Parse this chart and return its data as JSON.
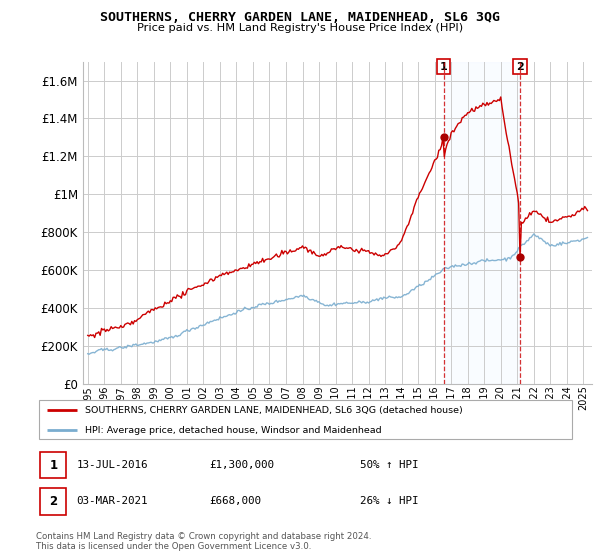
{
  "title": "SOUTHERNS, CHERRY GARDEN LANE, MAIDENHEAD, SL6 3QG",
  "subtitle": "Price paid vs. HM Land Registry's House Price Index (HPI)",
  "legend_line1": "SOUTHERNS, CHERRY GARDEN LANE, MAIDENHEAD, SL6 3QG (detached house)",
  "legend_line2": "HPI: Average price, detached house, Windsor and Maidenhead",
  "sale1_label": "1",
  "sale1_date": "13-JUL-2016",
  "sale1_price": "£1,300,000",
  "sale1_hpi": "50% ↑ HPI",
  "sale1_year": 2016.54,
  "sale1_value": 1300000,
  "sale2_label": "2",
  "sale2_date": "03-MAR-2021",
  "sale2_price": "£668,000",
  "sale2_hpi": "26% ↓ HPI",
  "sale2_year": 2021.17,
  "sale2_value": 668000,
  "footer1": "Contains HM Land Registry data © Crown copyright and database right 2024.",
  "footer2": "This data is licensed under the Open Government Licence v3.0.",
  "red_color": "#cc0000",
  "blue_color": "#7aadcf",
  "marker_color": "#aa0000",
  "dashed_color": "#cc0000",
  "bg_color": "#ffffff",
  "grid_color": "#cccccc",
  "shade_color": "#ddeeff",
  "ylim": [
    0,
    1700000
  ],
  "xlim_start": 1994.7,
  "xlim_end": 2025.5
}
